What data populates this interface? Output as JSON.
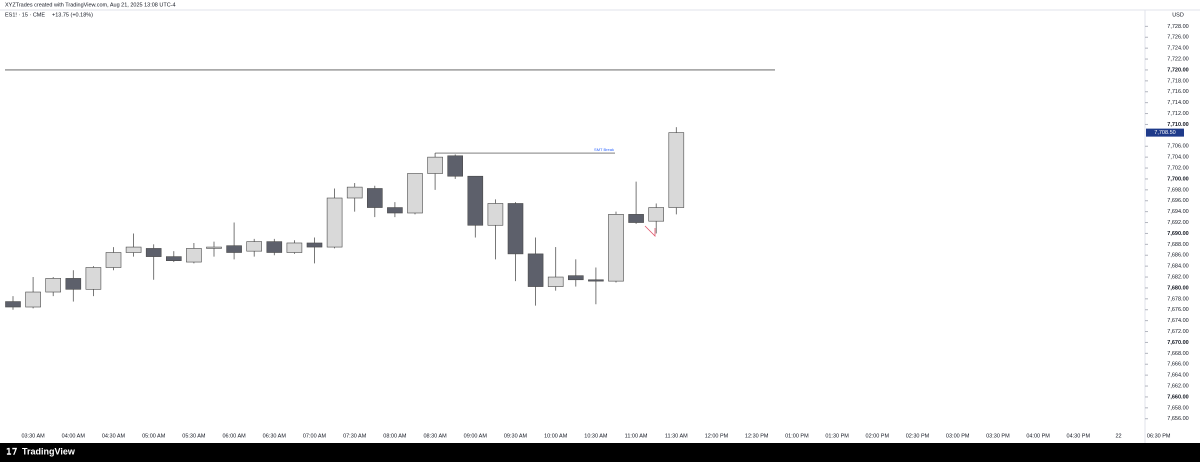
{
  "chart_data": {
    "type": "candlestick",
    "title": "XYZTrades created with TradingView.com, Aug 21, 2025 13:08 UTC-4",
    "subtitle": "ES1! · 15 · CME",
    "change": "+13.75 (+0.18%)",
    "currency": "USD",
    "footer": "TradingView",
    "categories": [
      null,
      "03:30 AM",
      null,
      "04:00 AM",
      null,
      "04:30 AM",
      null,
      "05:00 AM",
      null,
      "05:30 AM",
      null,
      "06:00 AM",
      null,
      "06:30 AM",
      null,
      "07:00 AM",
      null,
      "07:30 AM",
      null,
      "08:00 AM",
      null,
      "08:30 AM",
      null,
      "09:00 AM",
      null,
      "09:30 AM",
      null,
      "10:00 AM",
      null,
      "10:30 AM",
      null,
      "11:00 AM",
      null,
      "11:30 AM",
      null,
      "12:00 PM",
      null,
      "12:30 PM",
      null,
      "01:00 PM",
      null,
      "01:30 PM",
      null,
      "02:00 PM",
      null,
      "02:30 PM",
      null,
      "03:00 PM",
      null,
      "03:30 PM",
      null,
      "04:00 PM",
      null,
      "04:30 PM",
      null,
      "22",
      null,
      "06:30 PM"
    ],
    "open": [
      7677.5,
      7676.5,
      7679.25,
      7681.75,
      7679.75,
      7683.75,
      7686.5,
      7687.25,
      7685.75,
      7684.75,
      7687.25,
      7687.75,
      7686.75,
      7688.5,
      7686.5,
      7688.25,
      7687.5,
      7696.5,
      7698.25,
      7694.75,
      7693.75,
      7701,
      7704.25,
      7700.5,
      7691.5,
      7695.5,
      7686.25,
      7680.25,
      7682.25,
      7681.5,
      7681.25,
      7693.5,
      7692.25,
      7694.75,
      null,
      null,
      null,
      null,
      null,
      null,
      null,
      null,
      null,
      null,
      null,
      null,
      null,
      null,
      null,
      null,
      null,
      null,
      null,
      null,
      null,
      null,
      null,
      null
    ],
    "high": [
      7678.5,
      7682,
      7682,
      7683.25,
      7684,
      7687.5,
      7690,
      7688,
      7686.75,
      7688.25,
      7688.5,
      7692,
      7689,
      7689,
      7688.75,
      7689.25,
      7698.25,
      7699.25,
      7698.75,
      7695.75,
      7701,
      7704.75,
      7704.5,
      7700.5,
      7696.25,
      7695.75,
      7689.25,
      7687.5,
      7685.25,
      7683.75,
      7694,
      7699.5,
      7695.5,
      7709.5,
      null,
      null,
      null,
      null,
      null,
      null,
      null,
      null,
      null,
      null,
      null,
      null,
      null,
      null,
      null,
      null,
      null,
      null,
      null,
      null,
      null,
      null,
      null,
      null
    ],
    "low": [
      7676,
      7676.25,
      7678.5,
      7677.5,
      7678.5,
      7683.25,
      7685.75,
      7681.5,
      7684.75,
      7684.5,
      7685.75,
      7685.25,
      7685.75,
      7686,
      7686.25,
      7684.5,
      7687.25,
      7694,
      7693,
      7693,
      7693.5,
      7698,
      7700,
      7689.25,
      7685.25,
      7681.25,
      7676.75,
      7679.5,
      7680.25,
      7677,
      7681,
      7691.75,
      7690,
      7693.5,
      null,
      null,
      null,
      null,
      null,
      null,
      null,
      null,
      null,
      null,
      null,
      null,
      null,
      null,
      null,
      null,
      null,
      null,
      null,
      null,
      null,
      null,
      null,
      null
    ],
    "close": [
      7676.5,
      7679.25,
      7681.75,
      7679.75,
      7683.75,
      7686.5,
      7687.5,
      7685.75,
      7685,
      7687.25,
      7687.5,
      7686.5,
      7688.5,
      7686.5,
      7688.25,
      7687.5,
      7696.5,
      7698.5,
      7694.75,
      7693.75,
      7701,
      7704,
      7700.5,
      7691.5,
      7695.5,
      7686.25,
      7680.25,
      7682,
      7681.5,
      7681.25,
      7693.5,
      7692,
      7694.75,
      7708.5,
      null,
      null,
      null,
      null,
      null,
      null,
      null,
      null,
      null,
      null,
      null,
      null,
      null,
      null,
      null,
      null,
      null,
      null,
      null,
      null,
      null,
      null,
      null,
      null
    ],
    "up_color": "#d9d9d9",
    "down_color": "#5d606b",
    "ylim": [
      7654.3,
      7731
    ],
    "yticks": [
      {
        "value": 7728,
        "label": "7,728.00"
      },
      {
        "value": 7726,
        "label": "7,726.00"
      },
      {
        "value": 7724,
        "label": "7,724.00"
      },
      {
        "value": 7722,
        "label": "7,722.00"
      },
      {
        "value": 7720,
        "label": "7,720.00"
      },
      {
        "value": 7718,
        "label": "7,718.00"
      },
      {
        "value": 7716,
        "label": "7,716.00"
      },
      {
        "value": 7714,
        "label": "7,714.00"
      },
      {
        "value": 7712,
        "label": "7,712.00"
      },
      {
        "value": 7710,
        "label": "7,710.00"
      },
      {
        "value": 7706,
        "label": "7,706.00"
      },
      {
        "value": 7704,
        "label": "7,704.00"
      },
      {
        "value": 7702,
        "label": "7,702.00"
      },
      {
        "value": 7700,
        "label": "7,700.00"
      },
      {
        "value": 7698,
        "label": "7,698.00"
      },
      {
        "value": 7696,
        "label": "7,696.00"
      },
      {
        "value": 7694,
        "label": "7,694.00"
      },
      {
        "value": 7692,
        "label": "7,692.00"
      },
      {
        "value": 7690,
        "label": "7,690.00"
      },
      {
        "value": 7688,
        "label": "7,688.00"
      },
      {
        "value": 7686,
        "label": "7,686.00"
      },
      {
        "value": 7684,
        "label": "7,684.00"
      },
      {
        "value": 7682,
        "label": "7,682.00"
      },
      {
        "value": 7680,
        "label": "7,680.00"
      },
      {
        "value": 7678,
        "label": "7,678.00"
      },
      {
        "value": 7676,
        "label": "7,676.00"
      },
      {
        "value": 7674,
        "label": "7,674.00"
      },
      {
        "value": 7672,
        "label": "7,672.00"
      },
      {
        "value": 7670,
        "label": "7,670.00"
      },
      {
        "value": 7668,
        "label": "7,668.00"
      },
      {
        "value": 7666,
        "label": "7,666.00"
      },
      {
        "value": 7664,
        "label": "7,664.00"
      },
      {
        "value": 7662,
        "label": "7,662.00"
      },
      {
        "value": 7660,
        "label": "7,660.00"
      },
      {
        "value": 7658,
        "label": "7,658.00"
      },
      {
        "value": 7656,
        "label": "7,656.00"
      }
    ],
    "last_price": {
      "value": 7708.5,
      "label": "7,708.50"
    },
    "horizontal_line": 7720,
    "annotation": {
      "text": "SMT Break",
      "value": 7704.75
    }
  }
}
